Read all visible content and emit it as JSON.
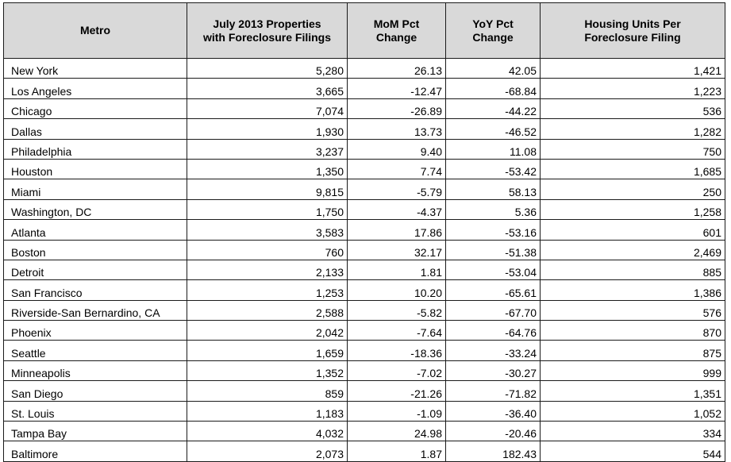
{
  "table": {
    "headers": [
      [
        "Metro"
      ],
      [
        "July 2013  Properties",
        "with Foreclosure Filings"
      ],
      [
        "MoM Pct",
        "Change"
      ],
      [
        "YoY Pct",
        "Change"
      ],
      [
        "Housing Units Per",
        "Foreclosure Filing"
      ]
    ],
    "rows": [
      [
        "New York",
        "5,280",
        "26.13",
        "42.05",
        "1,421"
      ],
      [
        "Los Angeles",
        "3,665",
        "-12.47",
        "-68.84",
        "1,223"
      ],
      [
        "Chicago",
        "7,074",
        "-26.89",
        "-44.22",
        "536"
      ],
      [
        "Dallas",
        "1,930",
        "13.73",
        "-46.52",
        "1,282"
      ],
      [
        "Philadelphia",
        "3,237",
        "9.40",
        "11.08",
        "750"
      ],
      [
        "Houston",
        "1,350",
        "7.74",
        "-53.42",
        "1,685"
      ],
      [
        "Miami",
        "9,815",
        "-5.79",
        "58.13",
        "250"
      ],
      [
        "Washington, DC",
        "1,750",
        "-4.37",
        "5.36",
        "1,258"
      ],
      [
        "Atlanta",
        "3,583",
        "17.86",
        "-53.16",
        "601"
      ],
      [
        "Boston",
        "760",
        "32.17",
        "-51.38",
        "2,469"
      ],
      [
        "Detroit",
        "2,133",
        "1.81",
        "-53.04",
        "885"
      ],
      [
        "San Francisco",
        "1,253",
        "10.20",
        "-65.61",
        "1,386"
      ],
      [
        "Riverside-San Bernardino, CA",
        "2,588",
        "-5.82",
        "-67.70",
        "576"
      ],
      [
        "Phoenix",
        "2,042",
        "-7.64",
        "-64.76",
        "870"
      ],
      [
        "Seattle",
        "1,659",
        "-18.36",
        "-33.24",
        "875"
      ],
      [
        "Minneapolis",
        "1,352",
        "-7.02",
        "-30.27",
        "999"
      ],
      [
        "San Diego",
        "859",
        "-21.26",
        "-71.82",
        "1,351"
      ],
      [
        "St. Louis",
        "1,183",
        "-1.09",
        "-36.40",
        "1,052"
      ],
      [
        "Tampa Bay",
        "4,032",
        "24.98",
        "-20.46",
        "334"
      ],
      [
        "Baltimore",
        "2,073",
        "1.87",
        "182.43",
        "544"
      ]
    ]
  },
  "colors": {
    "header_background": "#d9d9d9",
    "border": "#1a1a1a"
  }
}
